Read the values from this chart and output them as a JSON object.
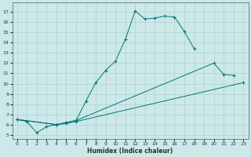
{
  "xlabel": "Humidex (Indice chaleur)",
  "bg_color": "#cce8e8",
  "grid_color": "#b0d0d0",
  "line_color": "#007878",
  "xlim": [
    -0.5,
    23.5
  ],
  "ylim": [
    4.6,
    17.9
  ],
  "yticks": [
    5,
    6,
    7,
    8,
    9,
    10,
    11,
    12,
    13,
    14,
    15,
    16,
    17
  ],
  "xticks": [
    0,
    1,
    2,
    3,
    4,
    5,
    6,
    7,
    8,
    9,
    10,
    11,
    12,
    13,
    14,
    15,
    16,
    17,
    18,
    19,
    20,
    21,
    22,
    23
  ],
  "line1_x": [
    0,
    1,
    2,
    3,
    4,
    5,
    6,
    7,
    8,
    9,
    10,
    11,
    12,
    13,
    14,
    15,
    16,
    17,
    18
  ],
  "line1_y": [
    6.5,
    6.3,
    5.2,
    5.8,
    6.0,
    6.2,
    6.4,
    8.3,
    10.1,
    11.3,
    12.2,
    14.3,
    17.1,
    16.3,
    16.4,
    16.6,
    16.5,
    15.1,
    13.4
  ],
  "line2_x": [
    0,
    4,
    5,
    6,
    20,
    21,
    22
  ],
  "line2_y": [
    6.5,
    6.0,
    6.2,
    6.4,
    12.0,
    10.9,
    10.8
  ],
  "line3_x": [
    0,
    4,
    5,
    6,
    23
  ],
  "line3_y": [
    6.5,
    6.0,
    6.1,
    6.3,
    10.1
  ]
}
